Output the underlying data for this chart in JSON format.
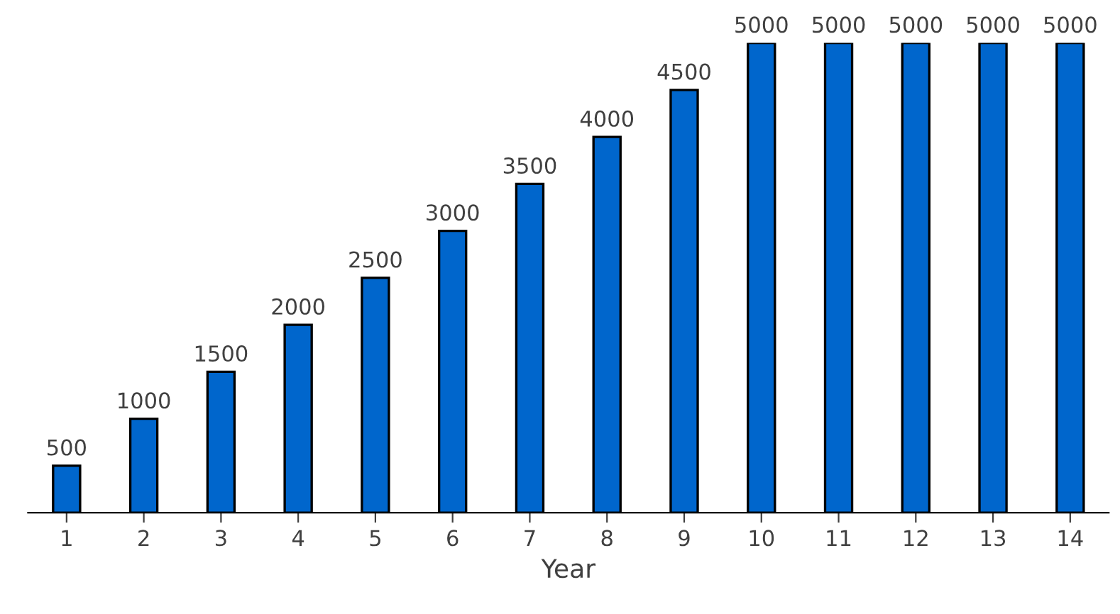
{
  "chart_data": {
    "type": "bar",
    "xlabel": "Year",
    "categories": [
      "1",
      "2",
      "3",
      "4",
      "5",
      "6",
      "7",
      "8",
      "9",
      "10",
      "11",
      "12",
      "13",
      "14"
    ],
    "values": [
      500,
      1000,
      1500,
      2000,
      2500,
      3000,
      3500,
      4000,
      4500,
      5000,
      5000,
      5000,
      5000,
      5000
    ],
    "color": "#0066cc",
    "data_labels": true,
    "grid": false,
    "legend": false
  }
}
